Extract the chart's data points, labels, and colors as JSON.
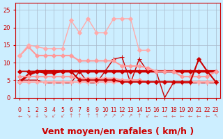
{
  "x": [
    0,
    1,
    2,
    3,
    4,
    5,
    6,
    7,
    8,
    9,
    10,
    11,
    12,
    13,
    14,
    15,
    16,
    17,
    18,
    19,
    20,
    21,
    22,
    23
  ],
  "series": [
    {
      "y": [
        4.5,
        6.5,
        7.5,
        7.5,
        7.5,
        7.5,
        7.5,
        7.5,
        7.5,
        7.5,
        7.5,
        7.5,
        7.5,
        7.5,
        7.5,
        7.5,
        7.5,
        7.5,
        7.5,
        7.5,
        7.5,
        7.5,
        7.5,
        7.5
      ],
      "color": "#cc0000",
      "lw": 2.5,
      "marker": "D",
      "ms": 3
    },
    {
      "y": [
        5.0,
        5.0,
        5.0,
        4.2,
        4.2,
        4.2,
        4.2,
        7.5,
        4.2,
        4.2,
        7.5,
        11.0,
        11.5,
        4.2,
        11.0,
        7.5,
        7.5,
        0.0,
        4.2,
        4.2,
        4.2,
        4.2,
        4.2,
        4.2
      ],
      "color": "#cc0000",
      "lw": 1.0,
      "marker": "+",
      "ms": 4
    },
    {
      "y": [
        12.0,
        14.5,
        12.0,
        12.0,
        12.0,
        12.0,
        12.0,
        10.5,
        10.5,
        10.5,
        10.5,
        10.5,
        9.0,
        9.0,
        9.0,
        8.5,
        7.5,
        7.5,
        7.5,
        6.0,
        6.0,
        6.0,
        6.0,
        7.5
      ],
      "color": "#ff9999",
      "lw": 1.5,
      "marker": "D",
      "ms": 3
    },
    {
      "y": [
        6.0,
        6.0,
        6.0,
        6.0,
        6.0,
        6.0,
        6.0,
        5.5,
        5.5,
        5.5,
        5.5,
        5.5,
        5.0,
        5.0,
        5.0,
        4.5,
        4.5,
        4.5,
        4.5,
        4.5,
        4.5,
        4.5,
        4.5,
        4.5
      ],
      "color": "#ff9999",
      "lw": 1.5,
      "marker": "D",
      "ms": 3
    },
    {
      "y": [
        4.5,
        4.5,
        4.5,
        4.5,
        4.5,
        4.5,
        4.5,
        4.5,
        4.5,
        4.5,
        4.5,
        4.5,
        4.5,
        4.5,
        4.5,
        4.5,
        4.5,
        4.5,
        4.5,
        4.5,
        4.5,
        4.5,
        4.5,
        4.5
      ],
      "color": "#ffaaaa",
      "lw": 1.5,
      "marker": "D",
      "ms": 3
    },
    {
      "y": [
        12.0,
        15.0,
        14.5,
        14.0,
        14.0,
        14.0,
        22.0,
        18.5,
        22.5,
        18.5,
        18.5,
        22.5,
        22.5,
        22.5,
        13.5,
        13.5,
        null,
        null,
        null,
        null,
        null,
        null,
        null,
        null
      ],
      "color": "#ffaaaa",
      "lw": 1.0,
      "marker": "D",
      "ms": 3
    },
    {
      "y": [
        7.5,
        7.5,
        7.5,
        7.0,
        7.0,
        7.5,
        7.5,
        5.0,
        5.0,
        5.0,
        5.0,
        5.0,
        4.5,
        4.5,
        4.5,
        4.5,
        4.5,
        4.5,
        4.5,
        4.5,
        4.5,
        11.0,
        7.5,
        4.5
      ],
      "color": "#cc0000",
      "lw": 1.5,
      "marker": "D",
      "ms": 3
    }
  ],
  "arrows": [
    "←",
    "↘",
    "↓",
    "↘",
    "↙",
    "↙",
    "↑",
    "↑",
    "↑",
    "↑",
    "↗",
    "↗",
    "↗",
    "↗",
    "↑",
    "↙",
    "←",
    "→",
    "←",
    "←",
    "←",
    "←",
    "←",
    "↖"
  ],
  "xlabel": "Vent moyen/en rafales ( km/h )",
  "ylabel": "",
  "ylim": [
    0,
    27
  ],
  "yticks": [
    0,
    5,
    10,
    15,
    20,
    25
  ],
  "xticks": [
    0,
    1,
    2,
    3,
    4,
    5,
    6,
    7,
    8,
    9,
    10,
    11,
    12,
    13,
    14,
    15,
    16,
    17,
    18,
    19,
    20,
    21,
    22,
    23
  ],
  "bg_color": "#cceeff",
  "grid_color": "#aabbcc",
  "axis_color": "#cc0000",
  "arrow_color": "#cc6666",
  "xlabel_color": "#cc0000",
  "xlabel_fontsize": 9
}
